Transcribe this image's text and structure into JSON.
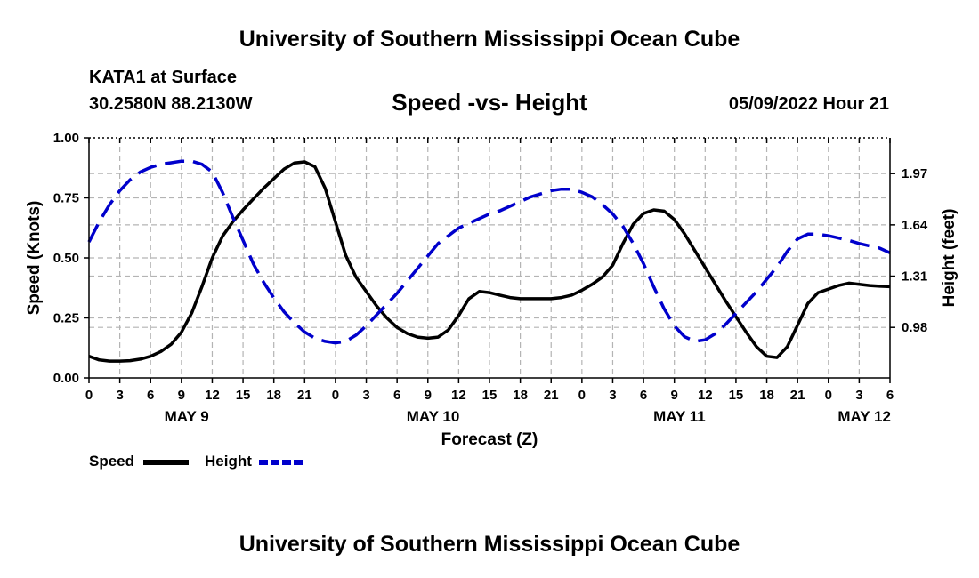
{
  "header": {
    "title": "University of Southern Mississippi Ocean Cube",
    "station": "KATA1 at Surface",
    "coords": "30.2580N  88.2130W",
    "subtitle": "Speed -vs- Height",
    "datetime": "05/09/2022 Hour 21"
  },
  "footer": {
    "title": "University of Southern Mississippi Ocean Cube"
  },
  "legend": {
    "speed_label": "Speed",
    "height_label": "Height"
  },
  "colors": {
    "speed": "#000000",
    "height": "#0000cc",
    "grid": "#b4b4b4"
  },
  "chart_data": {
    "type": "line",
    "title": "Speed -vs- Height",
    "xlabel": "Forecast (Z)",
    "ylabel": "Speed (Knots)",
    "y2label": "Height (feet)",
    "xlim": [
      0,
      78
    ],
    "ylim": [
      0,
      1
    ],
    "y2lim": [
      0.655,
      2.2
    ],
    "x_ticks": [
      0,
      3,
      6,
      9,
      12,
      15,
      18,
      21,
      24,
      27,
      30,
      33,
      36,
      39,
      42,
      45,
      48,
      51,
      54,
      57,
      60,
      63,
      66,
      69,
      72,
      75,
      78
    ],
    "x_tick_labels": [
      "0",
      "3",
      "6",
      "9",
      "12",
      "15",
      "18",
      "21",
      "0",
      "3",
      "6",
      "9",
      "12",
      "15",
      "18",
      "21",
      "0",
      "3",
      "6",
      "9",
      "12",
      "15",
      "18",
      "21",
      "0",
      "3",
      "6"
    ],
    "y_ticks": [
      0,
      0.25,
      0.5,
      0.75,
      1.0
    ],
    "y_tick_labels": [
      "0.00",
      "0.25",
      "0.50",
      "0.75",
      "1.00"
    ],
    "y2_ticks": [
      0.98,
      1.31,
      1.64,
      1.97
    ],
    "y2_tick_labels": [
      "0.98",
      "1.31",
      "1.64",
      "1.97"
    ],
    "date_labels": [
      {
        "x": 9.5,
        "label": "MAY 9"
      },
      {
        "x": 33.5,
        "label": "MAY 10"
      },
      {
        "x": 57.5,
        "label": "MAY 11"
      },
      {
        "x": 75.5,
        "label": "MAY 12"
      }
    ],
    "series": [
      {
        "name": "Speed",
        "axis": "left",
        "x": [
          0,
          1,
          2,
          3,
          4,
          5,
          6,
          7,
          8,
          9,
          10,
          11,
          12,
          13,
          14,
          15,
          16,
          17,
          18,
          19,
          20,
          21,
          22,
          23,
          24,
          25,
          26,
          27,
          28,
          29,
          30,
          31,
          32,
          33,
          34,
          35,
          36,
          37,
          38,
          39,
          40,
          41,
          42,
          43,
          44,
          45,
          46,
          47,
          48,
          49,
          50,
          51,
          52,
          53,
          54,
          55,
          56,
          57,
          58,
          59,
          60,
          61,
          62,
          63,
          64,
          65,
          66,
          67,
          68,
          69,
          70,
          71,
          72,
          73,
          74,
          75,
          76,
          77,
          78
        ],
        "values": [
          0.09,
          0.075,
          0.07,
          0.07,
          0.072,
          0.078,
          0.09,
          0.11,
          0.14,
          0.19,
          0.27,
          0.38,
          0.5,
          0.59,
          0.65,
          0.7,
          0.745,
          0.79,
          0.83,
          0.87,
          0.895,
          0.9,
          0.88,
          0.79,
          0.65,
          0.51,
          0.42,
          0.36,
          0.3,
          0.25,
          0.21,
          0.185,
          0.17,
          0.165,
          0.17,
          0.2,
          0.26,
          0.33,
          0.36,
          0.355,
          0.345,
          0.335,
          0.33,
          0.33,
          0.33,
          0.33,
          0.335,
          0.345,
          0.365,
          0.39,
          0.42,
          0.47,
          0.56,
          0.64,
          0.685,
          0.7,
          0.695,
          0.66,
          0.6,
          0.53,
          0.46,
          0.39,
          0.32,
          0.255,
          0.19,
          0.13,
          0.09,
          0.085,
          0.13,
          0.22,
          0.31,
          0.355,
          0.37,
          0.385,
          0.395,
          0.39,
          0.385,
          0.382,
          0.38
        ]
      },
      {
        "name": "Height",
        "axis": "right",
        "x": [
          0,
          1,
          2,
          3,
          4,
          5,
          6,
          7,
          8,
          9,
          10,
          11,
          12,
          13,
          14,
          15,
          16,
          17,
          18,
          19,
          20,
          21,
          22,
          23,
          24,
          25,
          26,
          27,
          28,
          29,
          30,
          31,
          32,
          33,
          34,
          35,
          36,
          37,
          38,
          39,
          40,
          41,
          42,
          43,
          44,
          45,
          46,
          47,
          48,
          49,
          50,
          51,
          52,
          53,
          54,
          55,
          56,
          57,
          58,
          59,
          60,
          61,
          62,
          63,
          64,
          65,
          66,
          67,
          68,
          69,
          70,
          71,
          72,
          73,
          74,
          75,
          76,
          77,
          78
        ],
        "values": [
          1.53,
          1.66,
          1.77,
          1.86,
          1.93,
          1.98,
          2.01,
          2.03,
          2.04,
          2.05,
          2.05,
          2.03,
          1.98,
          1.85,
          1.69,
          1.54,
          1.39,
          1.27,
          1.17,
          1.08,
          1.01,
          0.95,
          0.91,
          0.89,
          0.88,
          0.89,
          0.93,
          0.99,
          1.06,
          1.13,
          1.2,
          1.28,
          1.36,
          1.44,
          1.52,
          1.57,
          1.62,
          1.65,
          1.68,
          1.71,
          1.73,
          1.76,
          1.79,
          1.82,
          1.84,
          1.86,
          1.87,
          1.87,
          1.85,
          1.82,
          1.77,
          1.71,
          1.63,
          1.52,
          1.39,
          1.24,
          1.1,
          0.99,
          0.92,
          0.89,
          0.9,
          0.94,
          1.0,
          1.07,
          1.14,
          1.21,
          1.29,
          1.37,
          1.47,
          1.55,
          1.58,
          1.58,
          1.57,
          1.555,
          1.54,
          1.52,
          1.505,
          1.49,
          1.46
        ]
      }
    ]
  }
}
